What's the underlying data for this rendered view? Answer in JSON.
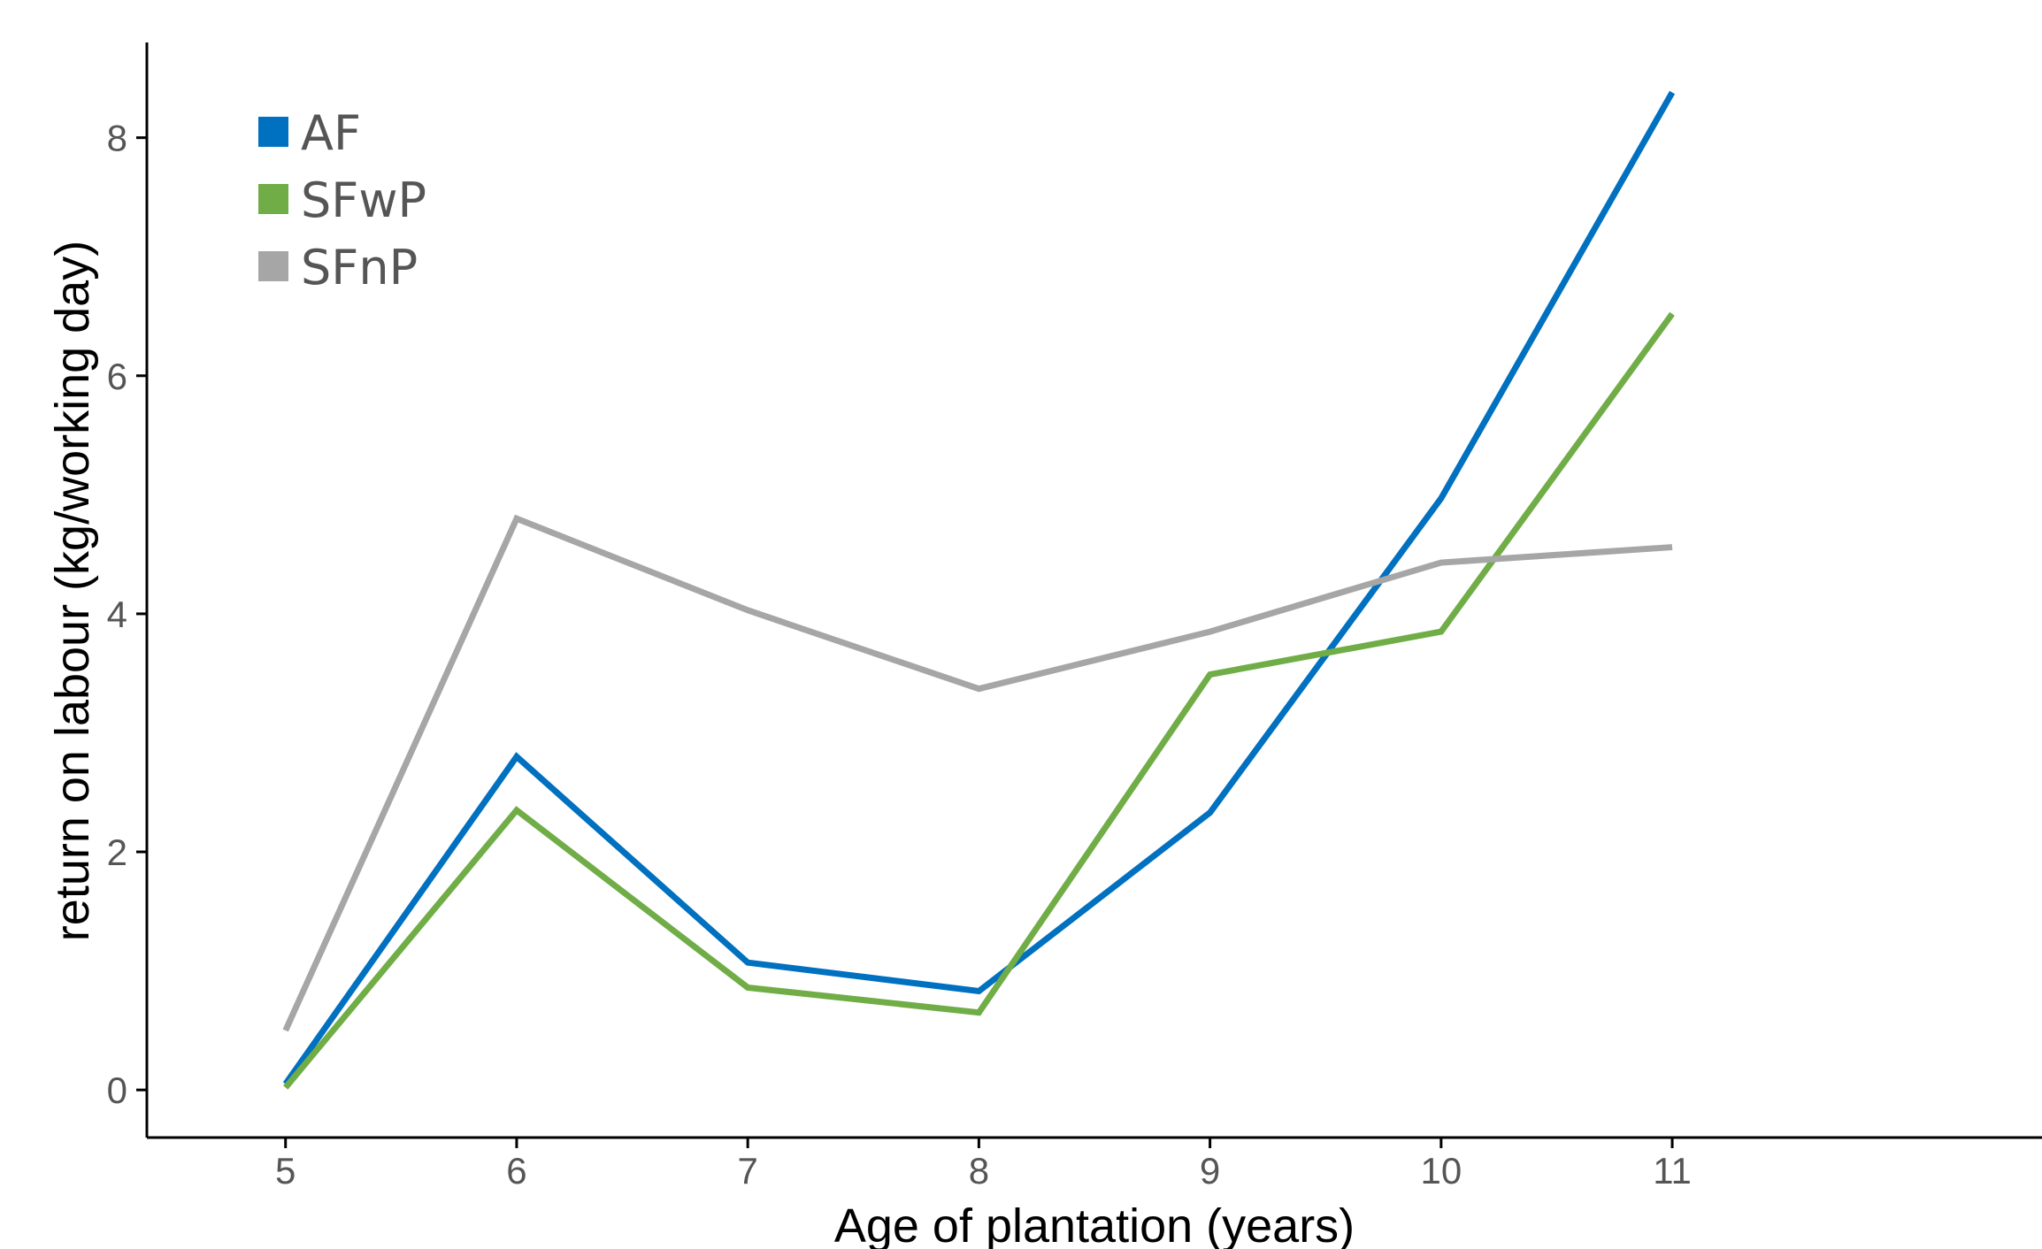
{
  "chart_data": {
    "type": "line",
    "xlabel": "Age of plantation (years)",
    "ylabel": "return on labour (kg/working day)",
    "x": [
      5,
      6,
      7,
      8,
      9,
      10,
      11
    ],
    "xticks": [
      "5",
      "6",
      "7",
      "8",
      "9",
      "10",
      "11"
    ],
    "xlim": [
      4.4,
      12.6
    ],
    "yticks": [
      "0",
      "2",
      "4",
      "6",
      "8"
    ],
    "ylim": [
      -0.4,
      8.8
    ],
    "grid": false,
    "legend_position": "top-left",
    "series": [
      {
        "name": "AF",
        "color": "#0070C0",
        "values": [
          0.05,
          2.8,
          1.07,
          0.83,
          2.33,
          4.97,
          8.38
        ]
      },
      {
        "name": "SFwP",
        "color": "#70AD47",
        "values": [
          0.02,
          2.35,
          0.86,
          0.65,
          3.49,
          3.85,
          6.52
        ]
      },
      {
        "name": "SFnP",
        "color": "#A6A6A6",
        "values": [
          0.5,
          4.8,
          4.03,
          3.37,
          3.85,
          4.43,
          4.56
        ]
      }
    ]
  }
}
